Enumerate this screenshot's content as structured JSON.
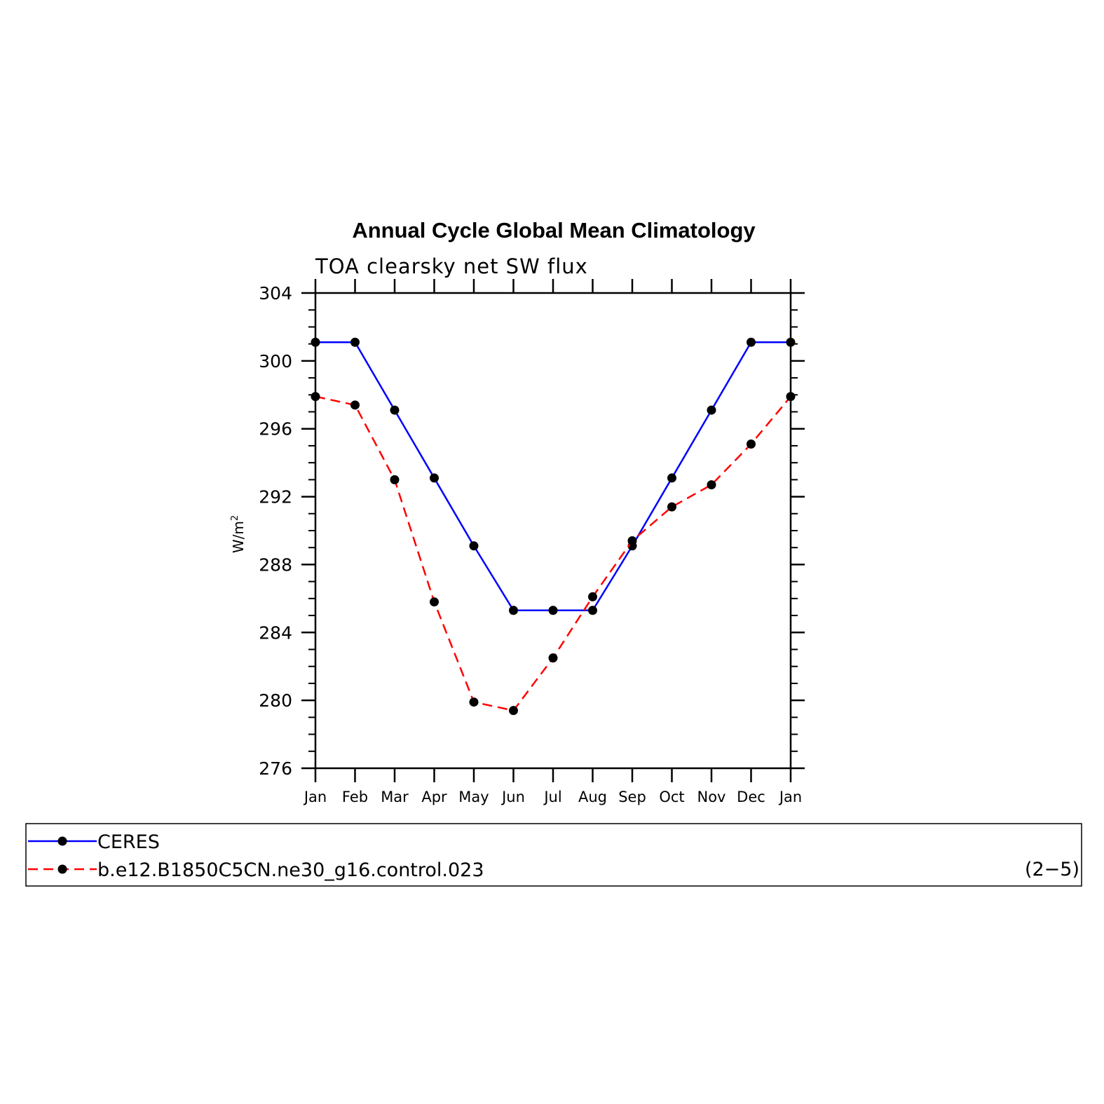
{
  "chart_data": {
    "type": "line",
    "title": "Annual Cycle Global Mean Climatology",
    "subtitle": "TOA clearsky net SW flux",
    "ylabel_base": "W/m",
    "ylabel_sup": "2",
    "xlabel": "",
    "categories": [
      "Jan",
      "Feb",
      "Mar",
      "Apr",
      "May",
      "Jun",
      "Jul",
      "Aug",
      "Sep",
      "Oct",
      "Nov",
      "Dec",
      "Jan"
    ],
    "ylim": [
      276,
      304
    ],
    "yticks": [
      "276",
      "280",
      "284",
      "288",
      "292",
      "296",
      "300",
      "304"
    ],
    "series": [
      {
        "name": "CERES",
        "color": "#0000ff",
        "dashed": false,
        "values": [
          301.1,
          301.1,
          297.1,
          293.1,
          289.1,
          285.3,
          285.3,
          285.3,
          289.1,
          293.1,
          297.1,
          301.1,
          301.1
        ]
      },
      {
        "name": "b.e12.B1850C5CN.ne30_g16.control.023",
        "color": "#ff0000",
        "dashed": true,
        "values": [
          297.9,
          297.4,
          293.0,
          285.8,
          279.9,
          279.4,
          282.5,
          286.1,
          289.4,
          291.4,
          292.7,
          295.1,
          297.9
        ]
      }
    ],
    "legend_position": "bottom",
    "legend_note": "(2−5)",
    "grid": false
  }
}
